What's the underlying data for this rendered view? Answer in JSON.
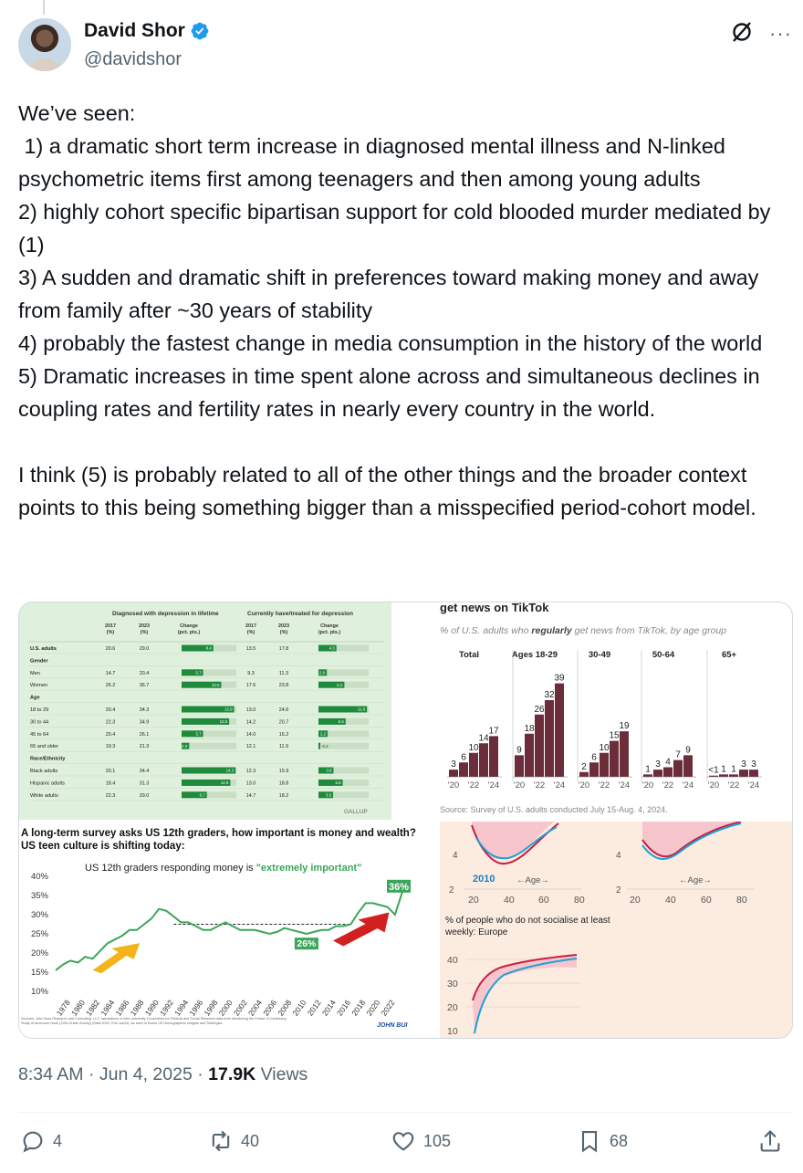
{
  "author": {
    "name": "David Shor",
    "handle": "@davidshor",
    "verified_icon": "verified-badge-icon"
  },
  "icons": {
    "grok": "grok-icon",
    "more": "more-icon",
    "more_glyph": "···"
  },
  "tweet": {
    "text": "We’ve seen:\n 1) a dramatic short term increase in diagnosed mental illness and N-linked psychometric items first among teenagers and then among young adults\n2) highly cohort specific bipartisan support for cold blooded murder mediated by (1)\n3) A sudden and dramatic shift in preferences toward making money and away from family after ~30 years of stability\n4) probably the fastest change in media consumption in the history of the world\n5) Dramatic increases in time spent alone across and simultaneous declines in coupling rates and fertility rates in nearly every country in the world.\n\nI think (5) is probably related to all of the other things and the broader context points to this being something bigger than a misspecified period-cohort model."
  },
  "meta": {
    "time": "8:34 AM",
    "sep1": " · ",
    "date": "Jun 4, 2025",
    "sep2": " · ",
    "views_count": "17.9K",
    "views_label": " Views"
  },
  "actions": {
    "replies": "4",
    "reposts": "40",
    "likes": "105",
    "bookmarks": "68"
  },
  "gallup": {
    "head_left": "Diagnosed with depression in lifetime",
    "head_right": "Currently have/treated for depression",
    "cols": [
      "2017 (%)",
      "2023 (%)",
      "Change (pct. pts.)",
      "2017 (%)",
      "2023 (%)",
      "Change (pct. pts.)"
    ],
    "rows": [
      {
        "label": "U.S. adults",
        "bold": true,
        "v": [
          "20.6",
          "29.0",
          "8.4",
          "13.5",
          "17.8",
          "4.3"
        ]
      },
      {
        "label": "Gender",
        "header": true
      },
      {
        "label": "Men",
        "v": [
          "14.7",
          "20.4",
          "5.7",
          "9.3",
          "11.3",
          "2.0"
        ]
      },
      {
        "label": "Women",
        "v": [
          "26.2",
          "36.7",
          "10.5",
          "17.6",
          "23.8",
          "6.2"
        ]
      },
      {
        "label": "Age",
        "header": true
      },
      {
        "label": "18 to 29",
        "v": [
          "20.4",
          "34.3",
          "13.9",
          "13.0",
          "24.6",
          "11.6"
        ]
      },
      {
        "label": "30 to 44",
        "v": [
          "22.3",
          "34.9",
          "12.6",
          "14.2",
          "20.7",
          "6.5"
        ]
      },
      {
        "label": "45 to 64",
        "v": [
          "20.4",
          "26.1",
          "5.7",
          "14.0",
          "16.2",
          "2.2"
        ]
      },
      {
        "label": "65 and older",
        "v": [
          "19.3",
          "21.3",
          "2.0",
          "12.1",
          "11.9",
          "-0.2"
        ]
      },
      {
        "label": "Race/Ethnicity",
        "header": true
      },
      {
        "label": "Black adults",
        "v": [
          "20.1",
          "34.4",
          "14.3",
          "12.3",
          "15.9",
          "3.6"
        ]
      },
      {
        "label": "Hispanic adults",
        "v": [
          "18.4",
          "31.3",
          "12.9",
          "13.0",
          "18.8",
          "5.8"
        ]
      },
      {
        "label": "White adults",
        "v": [
          "22.3",
          "29.0",
          "6.7",
          "14.7",
          "18.2",
          "3.5"
        ]
      }
    ],
    "source": "GALLUP"
  },
  "tiktok": {
    "title": "get news on TikTok",
    "subtitle_a": "% of U.S. adults who ",
    "subtitle_b": "regularly",
    "subtitle_c": " get news from TikTok, by age group",
    "source": "Source: Survey of U.S. adults conducted July 15-Aug. 4, 2024."
  },
  "money": {
    "title": "A long-term survey asks US 12th graders, how important is money and wealth? US teen culture is shifting today:",
    "subtitle_a": "US 12th graders responding money is ",
    "subtitle_b": "\"extremely important\"",
    "label_end": "36%",
    "label_mid": "26%",
    "brand": "JOHN BUI",
    "source": "Sources: John Bura Research and Consulting, LLC; tabulations of Inter-university Consortium for Political and Social Research data from Monitoring the Future: A Continuing Study of American Youth (12th-Grade Survey) (Data 2022, Pub Jun24). As seen in Burns US Demographics Insights and Strategies"
  },
  "social": {
    "label_2010": "2010",
    "age_label": "←Age→",
    "subtitle": "% of people who do not socialise at least weekly: Europe"
  },
  "chart_data": [
    {
      "type": "bar",
      "title": "get news on TikTok",
      "subtitle": "% of U.S. adults who regularly get news from TikTok, by age group",
      "categories": [
        "'20",
        "'22",
        "'24"
      ],
      "groups": [
        "Total",
        "Ages 18-29",
        "30-49",
        "50-64",
        "65+"
      ],
      "series": [
        {
          "name": "Total",
          "x": [
            2020,
            2021,
            2022,
            2023,
            2024
          ],
          "values": [
            3,
            6,
            10,
            14,
            17
          ]
        },
        {
          "name": "Ages 18-29",
          "x": [
            2020,
            2021,
            2022,
            2023,
            2024
          ],
          "values": [
            9,
            18,
            26,
            32,
            39
          ]
        },
        {
          "name": "30-49",
          "x": [
            2020,
            2021,
            2022,
            2023,
            2024
          ],
          "values": [
            2,
            6,
            10,
            15,
            19
          ]
        },
        {
          "name": "50-64",
          "x": [
            2020,
            2021,
            2022,
            2023,
            2024
          ],
          "values": [
            1,
            3,
            4,
            7,
            9
          ]
        },
        {
          "name": "65+",
          "x": [
            2020,
            2021,
            2022,
            2023,
            2024
          ],
          "values": [
            0.5,
            1,
            1,
            3,
            3
          ],
          "labels": [
            "<1",
            "1",
            "1",
            "3",
            "3"
          ]
        }
      ],
      "ylim": [
        0,
        40
      ],
      "color": "#6b2d3a"
    },
    {
      "type": "line",
      "title": "A long-term survey asks US 12th graders, how important is money and wealth? US teen culture is shifting today:",
      "subtitle": "US 12th graders responding money is \"extremely important\"",
      "x": [
        1976,
        1977,
        1978,
        1979,
        1980,
        1981,
        1982,
        1983,
        1984,
        1985,
        1986,
        1987,
        1988,
        1989,
        1990,
        1991,
        1992,
        1993,
        1994,
        1995,
        1996,
        1997,
        1998,
        1999,
        2000,
        2001,
        2002,
        2003,
        2004,
        2005,
        2006,
        2007,
        2008,
        2009,
        2010,
        2011,
        2012,
        2013,
        2014,
        2015,
        2016,
        2017,
        2018,
        2019,
        2020,
        2021,
        2022,
        2023
      ],
      "series": [
        {
          "values": [
            15.5,
            17,
            18,
            17.5,
            19,
            18.5,
            20.5,
            22.5,
            23.5,
            24.5,
            26,
            26,
            27.5,
            29,
            31.5,
            31,
            29.5,
            28,
            28,
            27,
            26,
            26,
            27,
            28,
            27,
            26,
            26,
            26,
            25.5,
            25,
            25.5,
            26.5,
            26,
            25.5,
            25,
            25.5,
            26,
            26,
            27,
            27,
            27.5,
            30.5,
            33,
            33,
            32.5,
            32,
            30,
            36
          ]
        }
      ],
      "xlim": [
        1976,
        2023
      ],
      "ylim": [
        10,
        40
      ],
      "yticks": [
        "10%",
        "15%",
        "20%",
        "25%",
        "30%",
        "35%",
        "40%"
      ],
      "xticks": [
        "1978",
        "1980",
        "1982",
        "1984",
        "1986",
        "1988",
        "1990",
        "1992",
        "1994",
        "1996",
        "1998",
        "2000",
        "2002",
        "2004",
        "2006",
        "2008",
        "2010",
        "2012",
        "2014",
        "2016",
        "2018",
        "2020",
        "2022"
      ],
      "annotations": [
        "36%",
        "26%"
      ]
    }
  ]
}
